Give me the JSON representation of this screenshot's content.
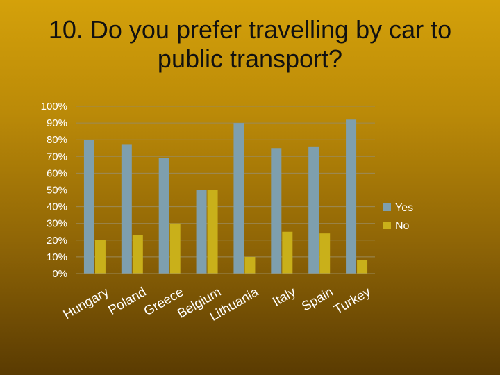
{
  "slide": {
    "title_line1": "10. Do you prefer travelling by car to",
    "title_line2": "public transport?"
  },
  "chart_data": {
    "type": "bar",
    "categories": [
      "Hungary",
      "Poland",
      "Greece",
      "Belgium",
      "Lithuania",
      "Italy",
      "Spain",
      "Turkey"
    ],
    "series": [
      {
        "name": "Yes",
        "color": "#7e9fae",
        "values": [
          80,
          77,
          69,
          50,
          90,
          75,
          76,
          92
        ]
      },
      {
        "name": "No",
        "color": "#c9b01a",
        "values": [
          20,
          23,
          30,
          50,
          10,
          25,
          24,
          8
        ]
      }
    ],
    "ylim": [
      0,
      100
    ],
    "yticks": [
      "0%",
      "10%",
      "20%",
      "30%",
      "40%",
      "50%",
      "60%",
      "70%",
      "80%",
      "90%",
      "100%"
    ],
    "xlabel": "",
    "ylabel": "",
    "grid": true,
    "legend_position": "right"
  }
}
